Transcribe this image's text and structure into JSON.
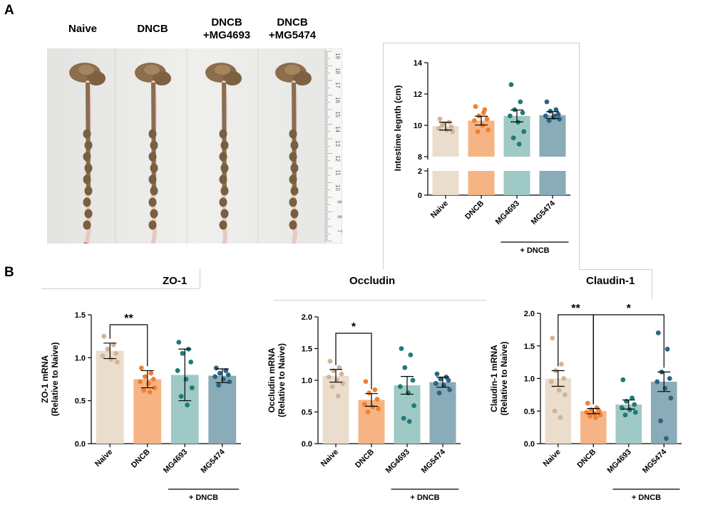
{
  "panels": {
    "a": "A",
    "b": "B"
  },
  "photo": {
    "groups": [
      "Naive",
      "DNCB",
      "DNCB\n+MG4693",
      "DNCB\n+MG5474"
    ],
    "ruler_numbers": [
      "19",
      "18",
      "17",
      "16",
      "15",
      "14",
      "13",
      "12",
      "11",
      "10",
      "9",
      "8",
      "7"
    ]
  },
  "colors": {
    "naive": "#eaddcc",
    "dncb": "#f6b484",
    "mg4693": "#9fc9c5",
    "mg5474": "#8aabb8",
    "naive_dot": "#d2b596",
    "dncb_dot": "#ee8131",
    "mg4693_dot": "#1f7b78",
    "mg5474_dot": "#2b6583"
  },
  "chart_data": [
    {
      "id": "intestine",
      "type": "bar",
      "title": "",
      "ylabel": "Intestime legnth (cm)",
      "categories": [
        "Naive",
        "DNCB",
        "MG4693",
        "MG5474"
      ],
      "group_label": "+ DNCB",
      "broken_axis": true,
      "ylim": [
        0,
        14
      ],
      "lower_ticks": [
        0,
        2
      ],
      "upper_ticks": [
        8,
        10,
        12,
        14
      ],
      "values": [
        9.95,
        10.3,
        10.6,
        10.65
      ],
      "errors": [
        0.25,
        0.28,
        0.38,
        0.22
      ],
      "points": [
        [
          10.4,
          10.2,
          10.1,
          9.9,
          9.8,
          9.7,
          9.6,
          10.0
        ],
        [
          11.2,
          11.0,
          10.6,
          10.4,
          10.3,
          10.0,
          9.7,
          9.6,
          10.8
        ],
        [
          12.6,
          11.5,
          11.0,
          10.8,
          10.6,
          10.2,
          9.6,
          9.2,
          8.8
        ],
        [
          11.5,
          11.0,
          10.9,
          10.7,
          10.6,
          10.5,
          10.4,
          10.3,
          10.6
        ]
      ],
      "significance": []
    },
    {
      "id": "zo1",
      "type": "bar",
      "title": "ZO-1",
      "ylabel": "ZO-1 mRNA\n(Relative to Naive)",
      "categories": [
        "Naive",
        "DNCB",
        "MG4693",
        "MG5474"
      ],
      "group_label": "+ DNCB",
      "ylim": [
        0,
        1.5
      ],
      "ticks": [
        0.0,
        0.5,
        1.0,
        1.5
      ],
      "values": [
        1.08,
        0.75,
        0.8,
        0.79
      ],
      "errors": [
        0.09,
        0.1,
        0.3,
        0.08
      ],
      "points": [
        [
          1.25,
          1.15,
          1.1,
          1.05,
          1.02,
          0.98,
          0.95
        ],
        [
          0.88,
          0.82,
          0.78,
          0.75,
          0.72,
          0.7,
          0.65,
          0.62,
          0.6
        ],
        [
          1.18,
          1.1,
          1.05,
          0.95,
          0.85,
          0.75,
          0.65,
          0.55,
          0.45
        ],
        [
          0.88,
          0.85,
          0.82,
          0.8,
          0.78,
          0.75,
          0.72,
          0.68
        ]
      ],
      "significance": [
        {
          "from": 0,
          "to": 1,
          "label": "**"
        }
      ]
    },
    {
      "id": "occludin",
      "type": "bar",
      "title": "Occludin",
      "ylabel": "Occludin mRNA\n(Relative to Naive)",
      "categories": [
        "Naive",
        "DNCB",
        "MG4693",
        "MG5474"
      ],
      "group_label": "+ DNCB",
      "ylim": [
        0,
        2.0
      ],
      "ticks": [
        0.0,
        0.5,
        1.0,
        1.5,
        2.0
      ],
      "values": [
        1.07,
        0.69,
        0.92,
        0.97
      ],
      "errors": [
        0.1,
        0.1,
        0.14,
        0.08
      ],
      "points": [
        [
          1.3,
          1.2,
          1.15,
          1.1,
          1.05,
          1.0,
          0.95,
          0.9,
          0.75
        ],
        [
          0.98,
          0.85,
          0.8,
          0.7,
          0.62,
          0.58,
          0.55,
          0.5
        ],
        [
          1.5,
          1.4,
          1.2,
          1.0,
          0.9,
          0.8,
          0.6,
          0.4,
          0.35
        ],
        [
          1.1,
          1.05,
          1.02,
          1.0,
          0.95,
          0.92,
          0.85,
          0.8
        ]
      ],
      "significance": [
        {
          "from": 0,
          "to": 1,
          "label": "*"
        }
      ]
    },
    {
      "id": "claudin1",
      "type": "bar",
      "title": "Claudin-1",
      "ylabel": "Claudin-1 mRNA\n(Relative to Naive)",
      "categories": [
        "Naive",
        "DNCB",
        "MG4693",
        "MG5474"
      ],
      "group_label": "+ DNCB",
      "ylim": [
        0,
        2.0
      ],
      "ticks": [
        0.0,
        0.5,
        1.0,
        1.5,
        2.0
      ],
      "values": [
        1.0,
        0.5,
        0.6,
        0.95
      ],
      "errors": [
        0.12,
        0.04,
        0.07,
        0.15
      ],
      "points": [
        [
          1.62,
          1.22,
          1.12,
          1.0,
          0.95,
          0.82,
          0.75,
          0.5,
          0.4
        ],
        [
          0.62,
          0.55,
          0.52,
          0.5,
          0.48,
          0.46,
          0.44,
          0.42,
          0.4
        ],
        [
          0.98,
          0.7,
          0.65,
          0.6,
          0.55,
          0.52,
          0.48,
          0.44
        ],
        [
          1.7,
          1.45,
          1.1,
          1.0,
          0.95,
          0.85,
          0.7,
          0.35,
          0.08
        ]
      ],
      "significance": [
        {
          "from": 0,
          "to": 1,
          "label": "**"
        },
        {
          "from": 1,
          "to": 3,
          "label": "*"
        }
      ]
    }
  ]
}
